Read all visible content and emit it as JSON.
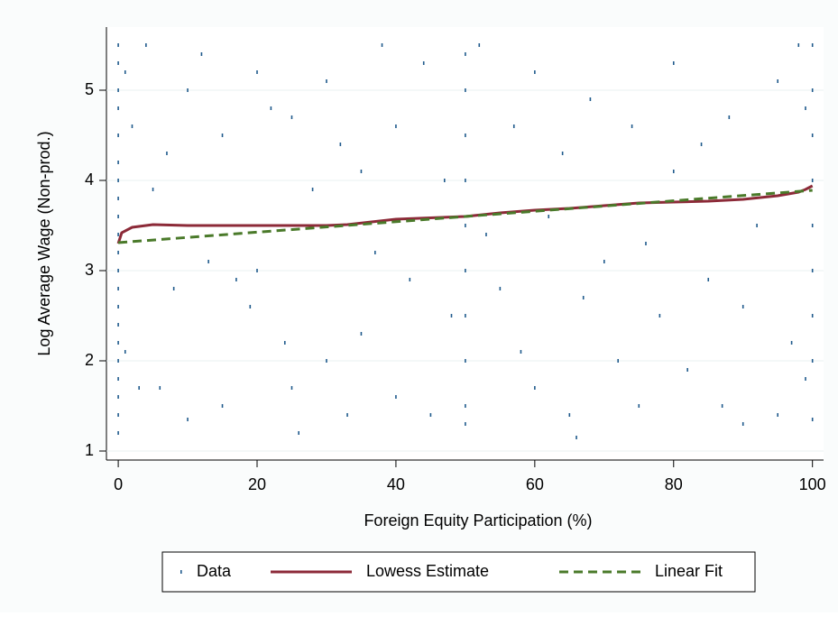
{
  "chart_data": {
    "type": "scatter",
    "xlabel": "Foreign Equity Participation (%)",
    "ylabel": "Log Average Wage (Non-prod.)",
    "xlim": [
      -1.7,
      101.6
    ],
    "ylim": [
      0.9,
      5.7
    ],
    "xticks": [
      0,
      20,
      40,
      60,
      80,
      100
    ],
    "yticks": [
      1,
      2,
      3,
      4,
      5
    ],
    "grid": true,
    "legend": "bottom",
    "series": [
      {
        "name": "Data",
        "type": "scatter",
        "color": "#1f5a8c",
        "x": [
          0,
          0,
          0,
          0,
          0,
          0,
          0,
          0,
          0,
          0,
          0,
          0,
          0,
          0,
          0,
          0,
          0,
          0,
          0,
          0,
          0,
          1,
          1,
          2,
          3,
          4,
          5,
          6,
          7,
          8,
          10,
          10,
          12,
          13,
          15,
          15,
          17,
          19,
          20,
          20,
          22,
          24,
          25,
          25,
          26,
          28,
          30,
          30,
          32,
          33,
          35,
          35,
          37,
          38,
          40,
          40,
          42,
          44,
          45,
          47,
          48,
          50,
          50,
          50,
          50,
          50,
          50,
          50,
          50,
          50,
          50,
          52,
          53,
          55,
          57,
          58,
          60,
          60,
          62,
          64,
          65,
          66,
          67,
          68,
          70,
          72,
          74,
          75,
          76,
          78,
          80,
          80,
          82,
          84,
          85,
          87,
          88,
          90,
          90,
          92,
          95,
          95,
          97,
          98,
          99,
          99,
          100,
          100,
          100,
          100,
          100,
          100,
          100,
          100,
          100
        ],
        "values": [
          5.5,
          5.3,
          5.0,
          4.8,
          4.5,
          4.2,
          4.0,
          3.8,
          3.6,
          3.4,
          3.2,
          3.0,
          2.8,
          2.6,
          2.4,
          2.2,
          2.0,
          1.8,
          1.6,
          1.4,
          1.2,
          5.2,
          2.1,
          4.6,
          1.7,
          5.5,
          3.9,
          1.7,
          4.3,
          2.8,
          1.35,
          5.0,
          5.4,
          3.1,
          4.5,
          1.5,
          2.9,
          2.6,
          5.2,
          3.0,
          4.8,
          2.2,
          4.7,
          1.7,
          1.2,
          3.9,
          5.1,
          2.0,
          4.4,
          1.4,
          4.1,
          2.3,
          3.2,
          5.5,
          4.6,
          1.6,
          2.9,
          5.3,
          1.4,
          4.0,
          2.5,
          5.4,
          5.0,
          4.5,
          4.0,
          3.5,
          3.0,
          2.5,
          2.0,
          1.5,
          1.3,
          5.5,
          3.4,
          2.8,
          4.6,
          2.1,
          5.2,
          1.7,
          3.6,
          4.3,
          1.4,
          1.15,
          2.7,
          4.9,
          3.1,
          2.0,
          4.6,
          1.5,
          3.3,
          2.5,
          5.3,
          4.1,
          1.9,
          4.4,
          2.9,
          1.5,
          4.7,
          1.3,
          2.6,
          3.5,
          5.1,
          1.4,
          2.2,
          5.5,
          4.8,
          1.8,
          5.5,
          5.0,
          4.5,
          4.0,
          3.5,
          3.0,
          2.5,
          2.0,
          1.35
        ]
      },
      {
        "name": "Lowess Estimate",
        "type": "line",
        "color": "#8c2a38",
        "x": [
          0,
          0.5,
          2,
          5,
          10,
          20,
          30,
          33,
          40,
          50,
          55,
          60,
          65,
          70,
          75,
          80,
          85,
          90,
          95,
          98,
          99,
          100
        ],
        "values": [
          3.3,
          3.42,
          3.48,
          3.51,
          3.5,
          3.5,
          3.5,
          3.51,
          3.57,
          3.6,
          3.64,
          3.67,
          3.69,
          3.72,
          3.75,
          3.76,
          3.77,
          3.79,
          3.83,
          3.87,
          3.9,
          3.94
        ]
      },
      {
        "name": "Linear Fit",
        "type": "line",
        "dashed": true,
        "color": "#4a7a2a",
        "x": [
          0,
          100
        ],
        "values": [
          3.31,
          3.89
        ]
      }
    ]
  }
}
